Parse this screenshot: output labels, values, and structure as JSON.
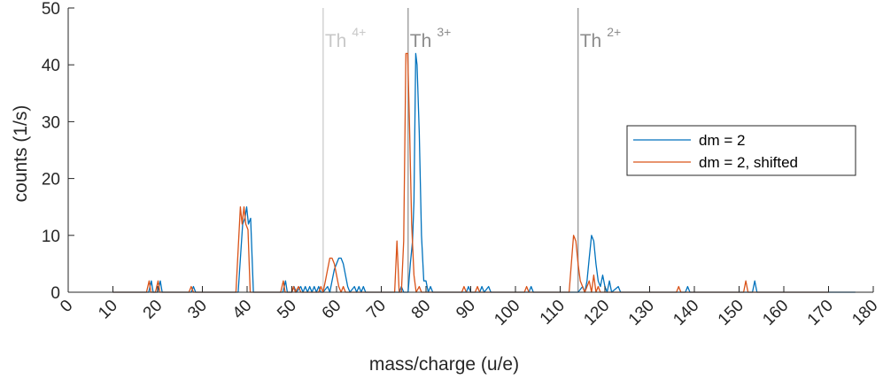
{
  "chart_data": {
    "type": "line",
    "xlabel": "mass/charge (u/e)",
    "ylabel": "counts (1/s)",
    "xlim": [
      0,
      180
    ],
    "ylim": [
      0,
      50
    ],
    "xticks": [
      0,
      10,
      20,
      30,
      40,
      50,
      60,
      70,
      80,
      90,
      100,
      110,
      120,
      130,
      140,
      150,
      160,
      170,
      180
    ],
    "yticks": [
      0,
      10,
      20,
      30,
      40,
      50
    ],
    "grid": false,
    "legend_position": "right",
    "annotations": [
      {
        "base": "Th",
        "sup": "4+",
        "x": 57,
        "color": "#c8c8c8"
      },
      {
        "base": "Th",
        "sup": "3+",
        "x": 76,
        "color": "#8c8c8c"
      },
      {
        "base": "Th",
        "sup": "2+",
        "x": 114,
        "color": "#8c8c8c"
      }
    ],
    "series": [
      {
        "name": "dm = 2",
        "color": "#0072BD",
        "points": [
          [
            10,
            0
          ],
          [
            18,
            0
          ],
          [
            18.6,
            2
          ],
          [
            19,
            0
          ],
          [
            20,
            0
          ],
          [
            20.6,
            2
          ],
          [
            21,
            0
          ],
          [
            27.5,
            0
          ],
          [
            28,
            1
          ],
          [
            28.5,
            0
          ],
          [
            38,
            0
          ],
          [
            39,
            12
          ],
          [
            39.5,
            13
          ],
          [
            39.9,
            15
          ],
          [
            40.3,
            12
          ],
          [
            40.8,
            13
          ],
          [
            41.4,
            0
          ],
          [
            48,
            0
          ],
          [
            48.6,
            2
          ],
          [
            49,
            0
          ],
          [
            50,
            0
          ],
          [
            50.5,
            1
          ],
          [
            51,
            0
          ],
          [
            52,
            1
          ],
          [
            52.5,
            0
          ],
          [
            53,
            1
          ],
          [
            53.5,
            0
          ],
          [
            54,
            1
          ],
          [
            54.5,
            0
          ],
          [
            55,
            1
          ],
          [
            55.5,
            0
          ],
          [
            56,
            1
          ],
          [
            56.5,
            0
          ],
          [
            57,
            0
          ],
          [
            58,
            1
          ],
          [
            58.5,
            0
          ],
          [
            59,
            2
          ],
          [
            59.5,
            4
          ],
          [
            60,
            5
          ],
          [
            60.5,
            6
          ],
          [
            61,
            6
          ],
          [
            61.5,
            5
          ],
          [
            62,
            3
          ],
          [
            62.5,
            1
          ],
          [
            63,
            0
          ],
          [
            64,
            1
          ],
          [
            64.5,
            0
          ],
          [
            65,
            1
          ],
          [
            65.5,
            0
          ],
          [
            66,
            1
          ],
          [
            66.5,
            0
          ],
          [
            74,
            0
          ],
          [
            74.5,
            1
          ],
          [
            75,
            0
          ],
          [
            76,
            0
          ],
          [
            76.5,
            5
          ],
          [
            77,
            9
          ],
          [
            77.3,
            16
          ],
          [
            77.7,
            42
          ],
          [
            78,
            40
          ],
          [
            78.5,
            28
          ],
          [
            79,
            10
          ],
          [
            79.5,
            2
          ],
          [
            80,
            2
          ],
          [
            80.5,
            0
          ],
          [
            81,
            1
          ],
          [
            81.5,
            0
          ],
          [
            89,
            0
          ],
          [
            89.5,
            1
          ],
          [
            90,
            0
          ],
          [
            92,
            0
          ],
          [
            92.5,
            1
          ],
          [
            93,
            0
          ],
          [
            94,
            1
          ],
          [
            94.5,
            0
          ],
          [
            103,
            0
          ],
          [
            103.5,
            1
          ],
          [
            104,
            0
          ],
          [
            114,
            0
          ],
          [
            115,
            1
          ],
          [
            115.5,
            0
          ],
          [
            116,
            2
          ],
          [
            116.5,
            6
          ],
          [
            117,
            10
          ],
          [
            117.5,
            9
          ],
          [
            118,
            5
          ],
          [
            118.5,
            2
          ],
          [
            119,
            1
          ],
          [
            119.5,
            3
          ],
          [
            120,
            1
          ],
          [
            120.5,
            0
          ],
          [
            121,
            2
          ],
          [
            121.5,
            0
          ],
          [
            123,
            1
          ],
          [
            123.5,
            0
          ],
          [
            138,
            0
          ],
          [
            138.5,
            1
          ],
          [
            139,
            0
          ],
          [
            153,
            0
          ],
          [
            153.5,
            2
          ],
          [
            154,
            0
          ],
          [
            170,
            0
          ],
          [
            176,
            0
          ]
        ]
      },
      {
        "name": "dm = 2, shifted",
        "color": "#D95319",
        "points": [
          [
            10,
            0
          ],
          [
            17.5,
            0
          ],
          [
            18.1,
            2
          ],
          [
            18.5,
            0
          ],
          [
            19.5,
            0
          ],
          [
            20.1,
            2
          ],
          [
            20.5,
            0
          ],
          [
            27,
            0
          ],
          [
            27.5,
            1
          ],
          [
            28,
            0
          ],
          [
            37.5,
            0
          ],
          [
            38.5,
            15
          ],
          [
            38.9,
            12
          ],
          [
            39.3,
            15
          ],
          [
            39.7,
            12
          ],
          [
            40.2,
            11
          ],
          [
            40.7,
            0
          ],
          [
            47.5,
            0
          ],
          [
            48.1,
            2
          ],
          [
            48.5,
            0
          ],
          [
            50,
            0
          ],
          [
            50.4,
            1
          ],
          [
            50.8,
            0
          ],
          [
            51.5,
            1
          ],
          [
            52,
            0
          ],
          [
            56,
            0
          ],
          [
            56.5,
            1
          ],
          [
            57,
            0
          ],
          [
            57.5,
            2
          ],
          [
            58,
            4
          ],
          [
            58.5,
            6
          ],
          [
            59,
            6
          ],
          [
            59.5,
            5
          ],
          [
            60,
            3
          ],
          [
            60.5,
            1
          ],
          [
            61,
            0
          ],
          [
            61.5,
            1
          ],
          [
            62,
            0
          ],
          [
            73,
            0
          ],
          [
            73.5,
            9
          ],
          [
            74,
            0
          ],
          [
            74.5,
            0
          ],
          [
            75,
            9
          ],
          [
            75.5,
            42
          ],
          [
            75.9,
            42
          ],
          [
            76.3,
            30
          ],
          [
            76.8,
            12
          ],
          [
            77.3,
            3
          ],
          [
            77.8,
            0
          ],
          [
            78.5,
            1
          ],
          [
            79,
            0
          ],
          [
            88,
            0
          ],
          [
            88.5,
            1
          ],
          [
            89,
            0
          ],
          [
            91,
            0
          ],
          [
            91.5,
            1
          ],
          [
            92,
            0
          ],
          [
            102,
            0
          ],
          [
            102.5,
            1
          ],
          [
            103,
            0
          ],
          [
            112,
            0
          ],
          [
            113,
            10
          ],
          [
            113.5,
            9
          ],
          [
            114,
            5
          ],
          [
            114.5,
            2
          ],
          [
            115,
            1
          ],
          [
            115.5,
            0
          ],
          [
            116.5,
            2
          ],
          [
            117,
            0
          ],
          [
            117.5,
            3
          ],
          [
            118,
            0
          ],
          [
            118.5,
            1
          ],
          [
            119,
            0
          ],
          [
            136,
            0
          ],
          [
            136.5,
            1
          ],
          [
            137,
            0
          ],
          [
            151,
            0
          ],
          [
            151.5,
            2
          ],
          [
            152,
            0
          ],
          [
            170,
            0
          ]
        ]
      }
    ]
  }
}
